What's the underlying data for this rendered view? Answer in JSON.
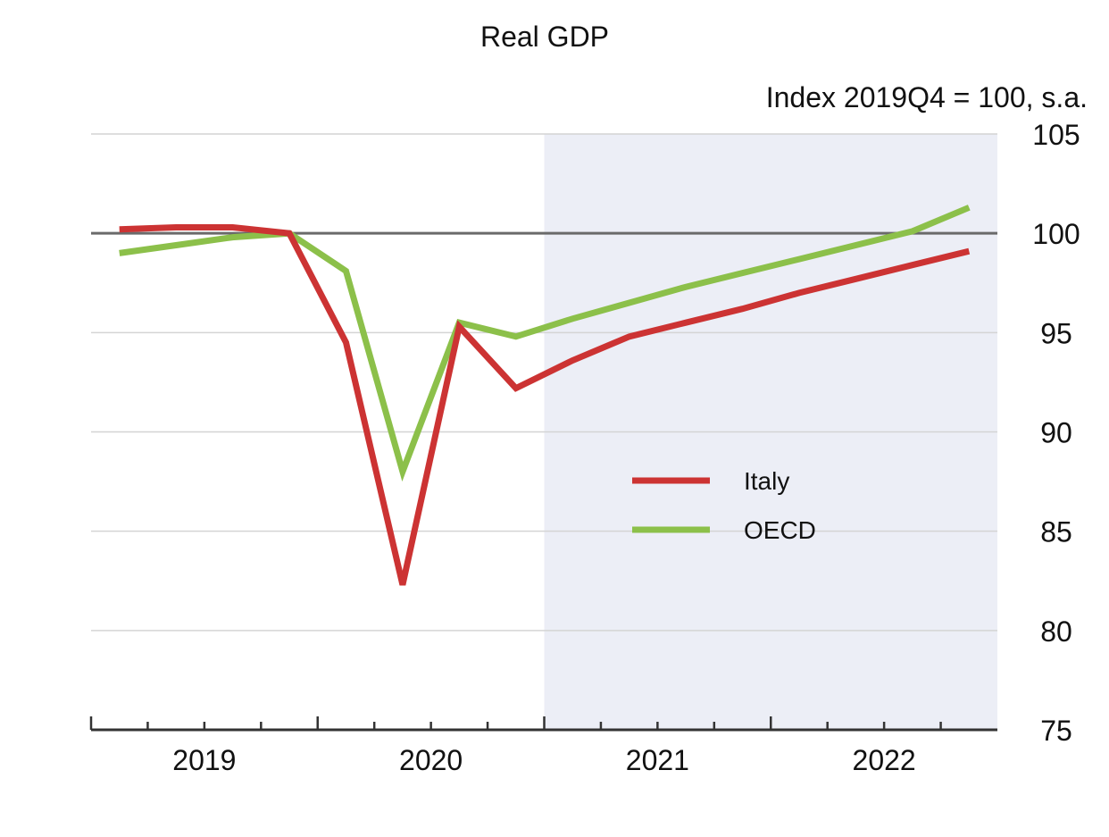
{
  "chart_data": {
    "type": "line",
    "title": "Real GDP",
    "unit_label": "Index 2019Q4 = 100, s.a.",
    "x_quarters": [
      "2019Q1",
      "2019Q2",
      "2019Q3",
      "2019Q4",
      "2020Q1",
      "2020Q2",
      "2020Q3",
      "2020Q4",
      "2021Q1",
      "2021Q2",
      "2021Q3",
      "2021Q4",
      "2022Q1",
      "2022Q2",
      "2022Q3",
      "2022Q4"
    ],
    "year_labels": [
      "2019",
      "2020",
      "2021",
      "2022"
    ],
    "projection_start": "2021Q1",
    "ylim": [
      75,
      105
    ],
    "yticks": [
      75,
      80,
      85,
      90,
      95,
      100,
      105
    ],
    "reference_line": 100,
    "series": [
      {
        "name": "Italy",
        "color": "#cc3333",
        "values": [
          100.2,
          100.3,
          100.3,
          100.0,
          94.5,
          82.3,
          95.3,
          92.2,
          93.6,
          94.8,
          95.5,
          96.2,
          97.0,
          97.7,
          98.4,
          99.1
        ]
      },
      {
        "name": "OECD",
        "color": "#8cc04a",
        "values": [
          99.0,
          99.4,
          99.8,
          100.0,
          98.1,
          88.0,
          95.5,
          94.8,
          95.7,
          96.5,
          97.3,
          98.0,
          98.7,
          99.4,
          100.1,
          101.3
        ]
      }
    ],
    "colors": {
      "projection_band": "#eceef6",
      "grid": "#d4d4d4",
      "reference": "#6a6a6a",
      "axis": "#333333"
    }
  }
}
